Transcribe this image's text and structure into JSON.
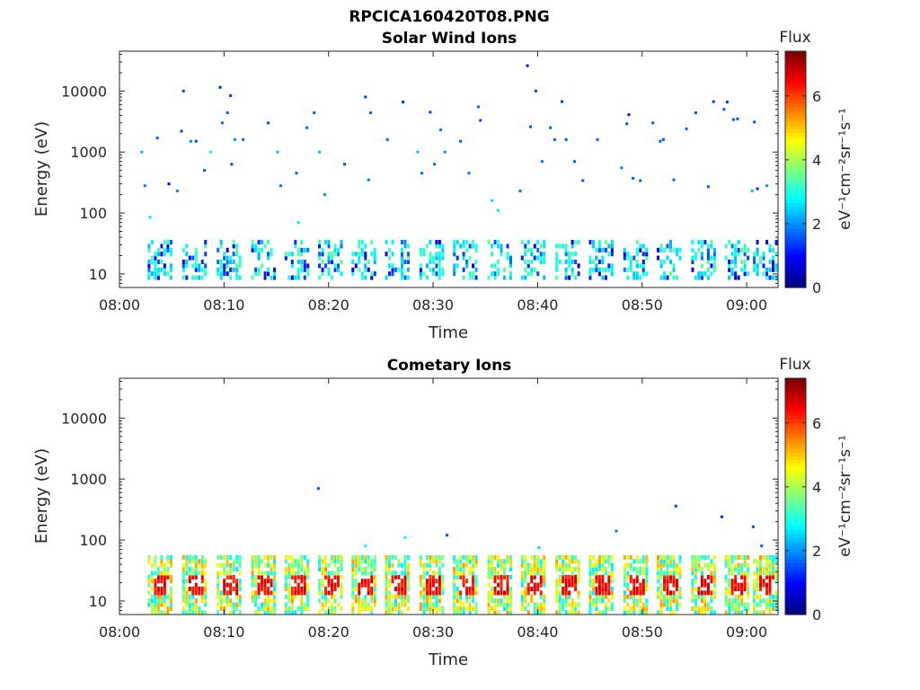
{
  "figure_title": "RPCICA160420T08.PNG",
  "colors": {
    "colormap": "jet",
    "axis": "#262626",
    "background": "#ffffff"
  },
  "chart_data": [
    {
      "type": "heatmap",
      "title": "Solar Wind Ions",
      "xlabel": "Time",
      "ylabel": "Energy (eV)",
      "y_scale": "log",
      "ylim": [
        6,
        45000
      ],
      "xlim": [
        "08:00",
        "09:03"
      ],
      "x_ticks": [
        "08:00",
        "08:10",
        "08:20",
        "08:30",
        "08:40",
        "08:50",
        "09:00"
      ],
      "y_ticks": [
        "10",
        "100",
        "1000",
        "10000"
      ],
      "colorbar": {
        "label": "Flux",
        "units": "eV⁻¹cm⁻²sr⁻¹s⁻¹",
        "range": [
          0,
          7.4
        ],
        "ticks": [
          "0",
          "2",
          "4",
          "6"
        ]
      },
      "sweep_minutes": [
        3.9,
        7.2,
        10.5,
        13.8,
        17.0,
        20.2,
        23.4,
        26.6,
        29.9,
        33.1,
        36.4,
        39.6,
        42.9,
        46.1,
        49.4,
        52.6,
        55.9,
        59.1,
        61.8
      ],
      "sweep_energy_range": [
        7.5,
        35
      ],
      "sweep_flux": [
        2.2,
        3.5
      ],
      "scatter": [
        [
          2.0,
          1000,
          2.3
        ],
        [
          2.3,
          280,
          1.8
        ],
        [
          2.8,
          85,
          2.6
        ],
        [
          3.5,
          1700,
          1.6
        ],
        [
          4.6,
          300,
          0.8
        ],
        [
          5.4,
          230,
          1.9
        ],
        [
          5.8,
          2200,
          1.4
        ],
        [
          6.0,
          10000,
          1.4
        ],
        [
          6.7,
          1500,
          1.9
        ],
        [
          7.2,
          1500,
          1.4
        ],
        [
          8.0,
          500,
          1.6
        ],
        [
          8.6,
          1000,
          2.8
        ],
        [
          9.5,
          11500,
          1.2
        ],
        [
          9.7,
          3000,
          1.6
        ],
        [
          10.2,
          4400,
          1.6
        ],
        [
          10.5,
          8400,
          1.3
        ],
        [
          10.6,
          630,
          1.5
        ],
        [
          10.9,
          1600,
          1.9
        ],
        [
          11.7,
          1600,
          1.6
        ],
        [
          14.1,
          3000,
          1.4
        ],
        [
          15.0,
          1000,
          2.3
        ],
        [
          15.3,
          280,
          1.8
        ],
        [
          16.8,
          450,
          1.6
        ],
        [
          17.0,
          70,
          2.8
        ],
        [
          17.8,
          2500,
          1.6
        ],
        [
          18.5,
          4400,
          1.6
        ],
        [
          19.0,
          1000,
          2.3
        ],
        [
          19.5,
          200,
          1.9
        ],
        [
          21.4,
          630,
          1.4
        ],
        [
          23.4,
          8000,
          1.3
        ],
        [
          23.7,
          350,
          1.8
        ],
        [
          23.9,
          4400,
          1.6
        ],
        [
          25.5,
          1600,
          1.6
        ],
        [
          27.0,
          6600,
          1.2
        ],
        [
          28.4,
          1000,
          2.3
        ],
        [
          28.8,
          450,
          1.7
        ],
        [
          29.6,
          4500,
          1.4
        ],
        [
          30.0,
          630,
          1.6
        ],
        [
          30.6,
          2300,
          1.8
        ],
        [
          31.0,
          1000,
          2.0
        ],
        [
          32.5,
          1500,
          1.6
        ],
        [
          33.3,
          450,
          1.8
        ],
        [
          34.2,
          5500,
          1.6
        ],
        [
          34.4,
          3300,
          1.4
        ],
        [
          35.5,
          160,
          2.6
        ],
        [
          36.1,
          110,
          2.7
        ],
        [
          38.2,
          230,
          1.7
        ],
        [
          38.9,
          26000,
          0.9
        ],
        [
          39.2,
          2600,
          1.5
        ],
        [
          39.7,
          10000,
          1.4
        ],
        [
          40.3,
          700,
          1.8
        ],
        [
          41.1,
          2500,
          1.6
        ],
        [
          41.5,
          1600,
          1.6
        ],
        [
          42.2,
          6700,
          1.3
        ],
        [
          42.6,
          1600,
          1.6
        ],
        [
          43.4,
          700,
          1.6
        ],
        [
          44.2,
          340,
          1.5
        ],
        [
          45.6,
          1600,
          1.6
        ],
        [
          47.9,
          550,
          1.8
        ],
        [
          48.4,
          2900,
          1.5
        ],
        [
          48.6,
          4100,
          1.1
        ],
        [
          49.0,
          370,
          1.6
        ],
        [
          49.7,
          340,
          1.6
        ],
        [
          50.9,
          3000,
          1.6
        ],
        [
          51.6,
          1500,
          1.6
        ],
        [
          51.9,
          1600,
          1.5
        ],
        [
          52.9,
          350,
          1.6
        ],
        [
          54.1,
          2400,
          1.6
        ],
        [
          55.0,
          4400,
          1.5
        ],
        [
          56.2,
          270,
          1.6
        ],
        [
          56.7,
          6700,
          1.3
        ],
        [
          57.7,
          5000,
          1.6
        ],
        [
          58.0,
          6600,
          1.3
        ],
        [
          58.6,
          3400,
          1.5
        ],
        [
          59.0,
          3500,
          1.5
        ],
        [
          60.4,
          230,
          2.3
        ],
        [
          60.6,
          3100,
          1.6
        ],
        [
          60.9,
          250,
          1.2
        ],
        [
          61.8,
          280,
          2.0
        ]
      ]
    },
    {
      "type": "heatmap",
      "title": "Cometary Ions",
      "xlabel": "Time",
      "ylabel": "Energy (eV)",
      "y_scale": "log",
      "ylim": [
        6,
        45000
      ],
      "xlim": [
        "08:00",
        "09:03"
      ],
      "x_ticks": [
        "08:00",
        "08:10",
        "08:20",
        "08:30",
        "08:40",
        "08:50",
        "09:00"
      ],
      "y_ticks": [
        "10",
        "100",
        "1000",
        "10000"
      ],
      "colorbar": {
        "label": "Flux",
        "units": "eV⁻¹cm⁻²sr⁻¹s⁻¹",
        "range": [
          0,
          7.4
        ],
        "ticks": [
          "0",
          "2",
          "4",
          "6"
        ]
      },
      "sweep_minutes": [
        3.9,
        7.2,
        10.5,
        13.8,
        17.0,
        20.2,
        23.4,
        26.6,
        29.9,
        33.1,
        36.4,
        39.6,
        42.9,
        46.1,
        49.4,
        52.6,
        55.9,
        59.1,
        61.8
      ],
      "sweep_energy_range": [
        6,
        60
      ],
      "sweep_peak_energy": [
        12,
        25
      ],
      "sweep_peak_flux": 6.9,
      "scatter": [
        [
          18.9,
          700,
          1.5
        ],
        [
          31.2,
          120,
          1.5
        ],
        [
          53.1,
          360,
          1.4
        ],
        [
          57.5,
          240,
          1.2
        ],
        [
          60.5,
          165,
          1.5
        ],
        [
          61.3,
          80,
          1.6
        ],
        [
          47.4,
          140,
          1.8
        ],
        [
          40.0,
          75,
          2.5
        ],
        [
          27.2,
          110,
          2.7
        ],
        [
          23.4,
          80,
          2.8
        ]
      ]
    }
  ]
}
